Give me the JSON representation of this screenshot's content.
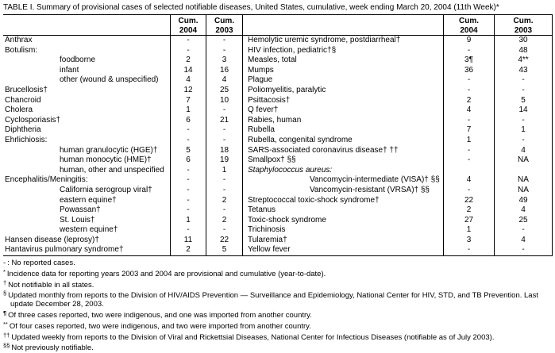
{
  "title": "TABLE I. Summary of provisional cases of selected notifiable diseases, United States, cumulative, week ending March 20, 2004 (11th Week)*",
  "header": {
    "cum": "Cum.",
    "y2004": "2004",
    "y2003": "2003"
  },
  "table": {
    "rows": [
      {
        "l": "Anthrax",
        "li": 0,
        "l04": "-",
        "l03": "-",
        "r": "Hemolytic uremic syndrome, postdiarrheal†",
        "ri": 0,
        "it": false,
        "r04": "9",
        "r03": "30"
      },
      {
        "l": "Botulism:",
        "li": 0,
        "l04": "-",
        "l03": "-",
        "r": "HIV infection, pediatric†§",
        "ri": 0,
        "it": false,
        "r04": "-",
        "r03": "48"
      },
      {
        "l": "foodborne",
        "li": 1,
        "l04": "2",
        "l03": "3",
        "r": "Measles, total",
        "ri": 0,
        "it": false,
        "r04": "3¶",
        "r03": "4**"
      },
      {
        "l": "infant",
        "li": 1,
        "l04": "14",
        "l03": "16",
        "r": "Mumps",
        "ri": 0,
        "it": false,
        "r04": "36",
        "r03": "43"
      },
      {
        "l": "other (wound & unspecified)",
        "li": 1,
        "l04": "4",
        "l03": "4",
        "r": "Plague",
        "ri": 0,
        "it": false,
        "r04": "-",
        "r03": "-"
      },
      {
        "l": "Brucellosis†",
        "li": 0,
        "l04": "12",
        "l03": "25",
        "r": "Poliomyelitis, paralytic",
        "ri": 0,
        "it": false,
        "r04": "-",
        "r03": "-"
      },
      {
        "l": "Chancroid",
        "li": 0,
        "l04": "7",
        "l03": "10",
        "r": "Psittacosis†",
        "ri": 0,
        "it": false,
        "r04": "2",
        "r03": "5"
      },
      {
        "l": "Cholera",
        "li": 0,
        "l04": "1",
        "l03": "-",
        "r": "Q fever†",
        "ri": 0,
        "it": false,
        "r04": "4",
        "r03": "14"
      },
      {
        "l": "Cyclosporiasis†",
        "li": 0,
        "l04": "6",
        "l03": "21",
        "r": "Rabies, human",
        "ri": 0,
        "it": false,
        "r04": "-",
        "r03": "-"
      },
      {
        "l": "Diphtheria",
        "li": 0,
        "l04": "-",
        "l03": "-",
        "r": "Rubella",
        "ri": 0,
        "it": false,
        "r04": "7",
        "r03": "1"
      },
      {
        "l": "Ehrlichiosis:",
        "li": 0,
        "l04": "-",
        "l03": "-",
        "r": "Rubella, congenital syndrome",
        "ri": 0,
        "it": false,
        "r04": "1",
        "r03": "-"
      },
      {
        "l": "human granulocytic (HGE)†",
        "li": 1,
        "l04": "5",
        "l03": "18",
        "r": "SARS-associated coronavirus disease† ††",
        "ri": 0,
        "it": false,
        "r04": "-",
        "r03": "4"
      },
      {
        "l": "human monocytic (HME)†",
        "li": 1,
        "l04": "6",
        "l03": "19",
        "r": "Smallpox† §§",
        "ri": 0,
        "it": false,
        "r04": "-",
        "r03": "NA"
      },
      {
        "l": "human, other and unspecified",
        "li": 1,
        "l04": "-",
        "l03": "1",
        "r": "Staphylococcus aureus:",
        "ri": 0,
        "it": true,
        "r04": "",
        "r03": ""
      },
      {
        "l": "Encephalitis/Meningitis:",
        "li": 0,
        "l04": "-",
        "l03": "-",
        "r": "Vancomycin-intermediate (VISA)† §§",
        "ri": 1,
        "it": false,
        "r04": "4",
        "r03": "NA"
      },
      {
        "l": "California serogroup viral†",
        "li": 1,
        "l04": "-",
        "l03": "-",
        "r": "Vancomycin-resistant (VRSA)† §§",
        "ri": 1,
        "it": false,
        "r04": "-",
        "r03": "NA"
      },
      {
        "l": "eastern equine†",
        "li": 1,
        "l04": "-",
        "l03": "2",
        "r": "Streptococcal toxic-shock syndrome†",
        "ri": 0,
        "it": false,
        "r04": "22",
        "r03": "49"
      },
      {
        "l": "Powassan†",
        "li": 1,
        "l04": "-",
        "l03": "-",
        "r": "Tetanus",
        "ri": 0,
        "it": false,
        "r04": "2",
        "r03": "4"
      },
      {
        "l": "St. Louis†",
        "li": 1,
        "l04": "1",
        "l03": "2",
        "r": "Toxic-shock syndrome",
        "ri": 0,
        "it": false,
        "r04": "27",
        "r03": "25"
      },
      {
        "l": "western equine†",
        "li": 1,
        "l04": "-",
        "l03": "-",
        "r": "Trichinosis",
        "ri": 0,
        "it": false,
        "r04": "1",
        "r03": "-"
      },
      {
        "l": "Hansen disease (leprosy)†",
        "li": 0,
        "l04": "11",
        "l03": "22",
        "r": "Tularemia†",
        "ri": 0,
        "it": false,
        "r04": "3",
        "r03": "4"
      },
      {
        "l": "Hantavirus pulmonary syndrome†",
        "li": 0,
        "l04": "2",
        "l03": "5",
        "r": "Yellow fever",
        "ri": 0,
        "it": false,
        "r04": "-",
        "r03": "-"
      }
    ]
  },
  "footnotes": [
    {
      "marker": "-",
      "text": ": No reported cases.",
      "sup": false,
      "bold": false
    },
    {
      "marker": "*",
      "text": "Incidence data for reporting years 2003 and 2004 are provisional and cumulative (year-to-date).",
      "sup": true,
      "bold": false
    },
    {
      "marker": "†",
      "text": "Not notifiable in all states.",
      "sup": true,
      "bold": false
    },
    {
      "marker": "§",
      "text": "Updated monthly from reports to the Division of HIV/AIDS Prevention — Surveillance and Epidemiology, National Center for HIV, STD, and TB Prevention. Last update December 28, 2003.",
      "sup": true,
      "bold": false
    },
    {
      "marker": "¶",
      "text": "Of three cases reported, two were indigenous, and one was imported from another country.",
      "sup": true,
      "bold": true
    },
    {
      "marker": "**",
      "text": "Of four cases reported, two were indigenous, and two were imported from another country.",
      "sup": true,
      "bold": false
    },
    {
      "marker": "††",
      "text": "Updated weekly from reports to the Division of Viral and Rickettsial Diseases, National Center for Infectious Diseases (notifiable as of July 2003).",
      "sup": true,
      "bold": false
    },
    {
      "marker": "§§",
      "text": "Not previously notifiable.",
      "sup": true,
      "bold": false
    }
  ]
}
